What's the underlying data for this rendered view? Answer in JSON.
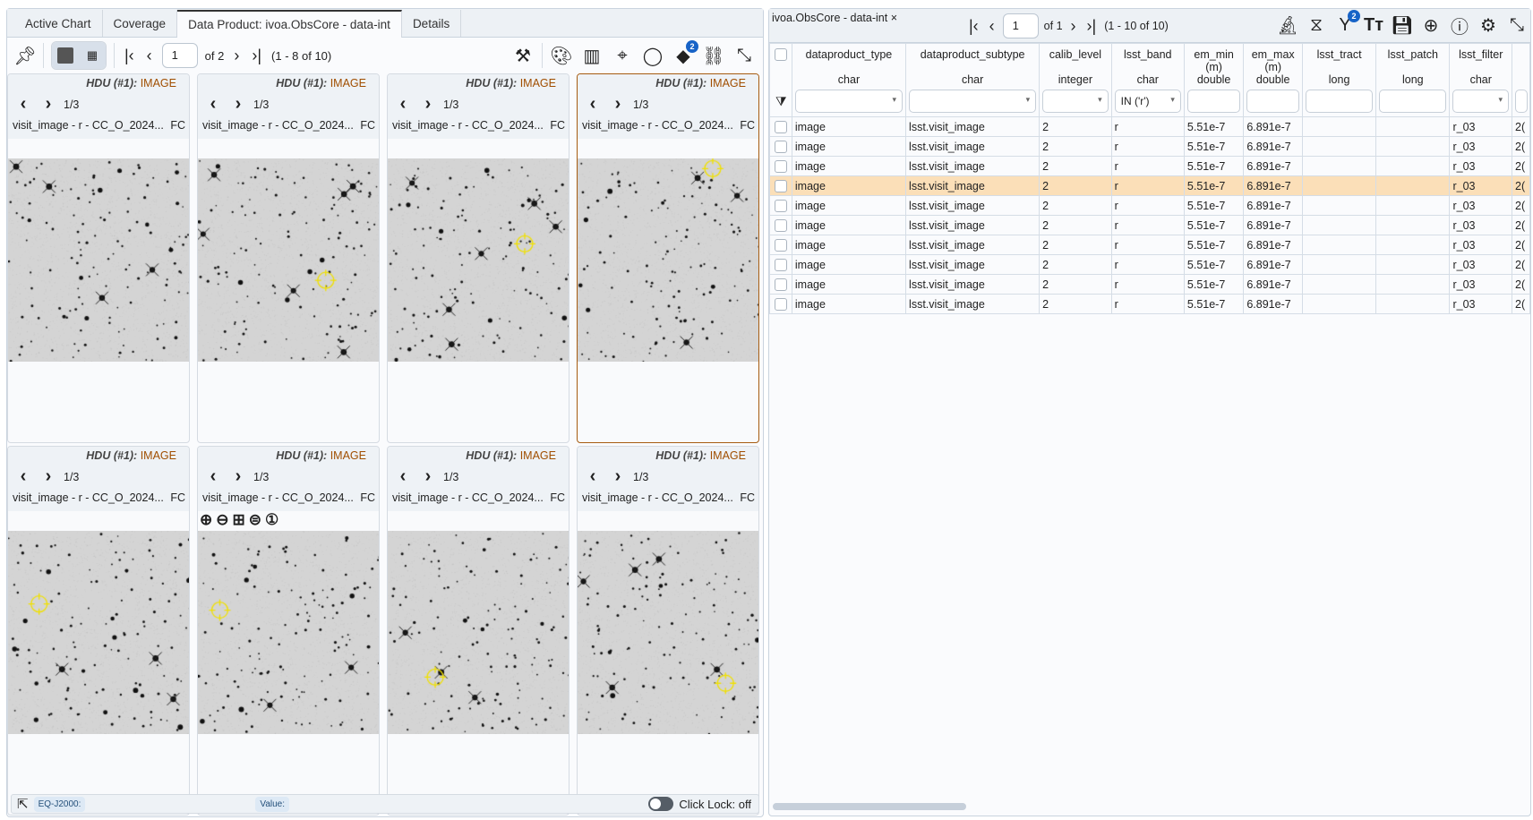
{
  "left": {
    "tabs": [
      {
        "label": "Active Chart"
      },
      {
        "label": "Coverage"
      },
      {
        "label": "Data Product: ivoa.ObsCore - data-int",
        "active": true
      },
      {
        "label": "Details"
      }
    ],
    "pager": {
      "page": "1",
      "of": "of 2",
      "range": "(1 - 8 of 10)"
    },
    "cells": [
      {
        "hdu": "HDU (#1):",
        "type": "IMAGE",
        "frame": "1/3",
        "title": "visit_image - r - CC_O_2024...",
        "fc": "FC",
        "markers": []
      },
      {
        "hdu": "HDU (#1):",
        "type": "IMAGE",
        "frame": "1/3",
        "title": "visit_image - r - CC_O_2024...",
        "fc": "FC",
        "markers": [
          [
            0.7,
            0.6
          ]
        ]
      },
      {
        "hdu": "HDU (#1):",
        "type": "IMAGE",
        "frame": "1/3",
        "title": "visit_image - r - CC_O_2024...",
        "fc": "FC",
        "markers": [
          [
            0.75,
            0.42
          ]
        ]
      },
      {
        "hdu": "HDU (#1):",
        "type": "IMAGE",
        "frame": "1/3",
        "title": "visit_image - r - CC_O_2024...",
        "fc": "FC",
        "markers": [
          [
            0.74,
            0.05
          ]
        ],
        "selected": true
      },
      {
        "hdu": "HDU (#1):",
        "type": "IMAGE",
        "frame": "1/3",
        "title": "visit_image - r - CC_O_2024...",
        "fc": "FC",
        "markers": [
          [
            0.17,
            0.36
          ]
        ]
      },
      {
        "hdu": "HDU (#1):",
        "type": "IMAGE",
        "frame": "1/3",
        "title": "visit_image - r - CC_O_2024...",
        "fc": "FC",
        "markers": [
          [
            0.12,
            0.39
          ]
        ],
        "zoom_tools": true
      },
      {
        "hdu": "HDU (#1):",
        "type": "IMAGE",
        "frame": "1/3",
        "title": "visit_image - r - CC_O_2024...",
        "fc": "FC",
        "markers": [
          [
            0.26,
            0.72
          ]
        ]
      },
      {
        "hdu": "HDU (#1):",
        "type": "IMAGE",
        "frame": "1/3",
        "title": "visit_image - r - CC_O_2024...",
        "fc": "FC",
        "markers": [
          [
            0.81,
            0.75
          ]
        ]
      }
    ],
    "status": {
      "coord": "EQ-J2000:",
      "value": "Value:",
      "click_lock": "Click Lock: off"
    }
  },
  "right": {
    "table_name": "ivoa.ObsCore - data-int ×",
    "pager": {
      "page": "1",
      "of": "of 1",
      "range": "(1 - 10 of 10)"
    },
    "filter_badge": "2",
    "columns": [
      {
        "name": "dataproduct_type",
        "unit": "",
        "type": "char",
        "filter": "",
        "dropdown": true
      },
      {
        "name": "dataproduct_subtype",
        "unit": "",
        "type": "char",
        "filter": "",
        "dropdown": true
      },
      {
        "name": "calib_level",
        "unit": "",
        "type": "integer",
        "filter": "",
        "dropdown": true
      },
      {
        "name": "lsst_band",
        "unit": "",
        "type": "char",
        "filter": "IN ('r')",
        "dropdown": true
      },
      {
        "name": "em_min",
        "unit": "(m)",
        "type": "double",
        "filter": ""
      },
      {
        "name": "em_max",
        "unit": "(m)",
        "type": "double",
        "filter": ""
      },
      {
        "name": "lsst_tract",
        "unit": "",
        "type": "long",
        "filter": ""
      },
      {
        "name": "lsst_patch",
        "unit": "",
        "type": "long",
        "filter": ""
      },
      {
        "name": "lsst_filter",
        "unit": "",
        "type": "char",
        "filter": "",
        "dropdown": true
      },
      {
        "name": "",
        "unit": "",
        "type": "",
        "filter": ""
      }
    ],
    "rows": [
      [
        "image",
        "lsst.visit_image",
        "2",
        "r",
        "5.51e-7",
        "6.891e-7",
        "",
        "",
        "r_03",
        "2("
      ],
      [
        "image",
        "lsst.visit_image",
        "2",
        "r",
        "5.51e-7",
        "6.891e-7",
        "",
        "",
        "r_03",
        "2("
      ],
      [
        "image",
        "lsst.visit_image",
        "2",
        "r",
        "5.51e-7",
        "6.891e-7",
        "",
        "",
        "r_03",
        "2("
      ],
      [
        "image",
        "lsst.visit_image",
        "2",
        "r",
        "5.51e-7",
        "6.891e-7",
        "",
        "",
        "r_03",
        "2("
      ],
      [
        "image",
        "lsst.visit_image",
        "2",
        "r",
        "5.51e-7",
        "6.891e-7",
        "",
        "",
        "r_03",
        "2("
      ],
      [
        "image",
        "lsst.visit_image",
        "2",
        "r",
        "5.51e-7",
        "6.891e-7",
        "",
        "",
        "r_03",
        "2("
      ],
      [
        "image",
        "lsst.visit_image",
        "2",
        "r",
        "5.51e-7",
        "6.891e-7",
        "",
        "",
        "r_03",
        "2("
      ],
      [
        "image",
        "lsst.visit_image",
        "2",
        "r",
        "5.51e-7",
        "6.891e-7",
        "",
        "",
        "r_03",
        "2("
      ],
      [
        "image",
        "lsst.visit_image",
        "2",
        "r",
        "5.51e-7",
        "6.891e-7",
        "",
        "",
        "r_03",
        "2("
      ],
      [
        "image",
        "lsst.visit_image",
        "2",
        "r",
        "5.51e-7",
        "6.891e-7",
        "",
        "",
        "r_03",
        "2("
      ]
    ],
    "highlighted_row": 3
  },
  "colors": {
    "selected_row": "#fbdfb8",
    "selected_border": "#a65b10",
    "hdu_type": "#a04e00",
    "marker": "#f0e000",
    "badge": "#1763c7"
  }
}
